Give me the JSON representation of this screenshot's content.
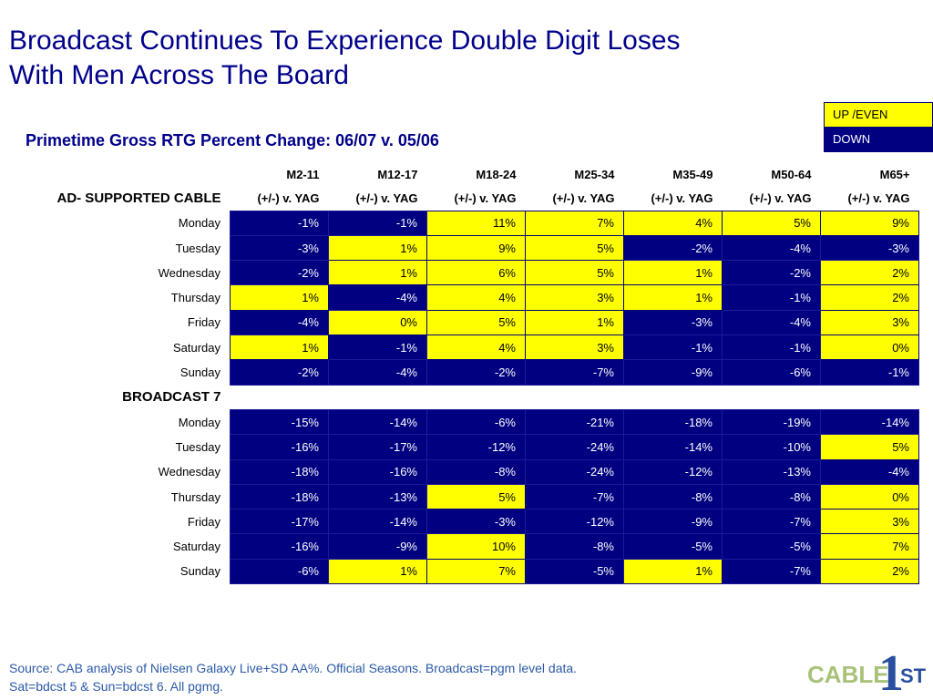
{
  "title_line1": "Broadcast Continues To Experience Double Digit Loses",
  "title_line2": "With Men Across The Board",
  "subtitle": "Primetime Gross RTG Percent Change: 06/07 v. 05/06",
  "legend": {
    "up_label": "UP /EVEN",
    "down_label": "DOWN"
  },
  "colors": {
    "up": "#ffff00",
    "down": "#000080",
    "title": "#00008b",
    "logo_green": "#a8c27a",
    "logo_blue": "#2a4fa0"
  },
  "source_line1": "Source: CAB analysis of Nielsen Galaxy Live+SD AA%. Official Seasons. Broadcast=pgm level data.",
  "source_line2": "Sat=bdcst 5 & Sun=bdcst 6.  All pgmg.",
  "logo": {
    "text": "CABLE",
    "numeral": "1",
    "suffix": "ST"
  },
  "chart_data": {
    "type": "table",
    "columns": [
      "M2-11",
      "M12-17",
      "M18-24",
      "M25-34",
      "M35-49",
      "M50-64",
      "M65+"
    ],
    "subheader": "(+/-) v. YAG",
    "sections": [
      {
        "name": "AD- SUPPORTED CABLE",
        "rows": [
          {
            "day": "Monday",
            "values": [
              "-1%",
              "-1%",
              "11%",
              "7%",
              "4%",
              "5%",
              "9%"
            ]
          },
          {
            "day": "Tuesday",
            "values": [
              "-3%",
              "1%",
              "9%",
              "5%",
              "-2%",
              "-4%",
              "-3%"
            ]
          },
          {
            "day": "Wednesday",
            "values": [
              "-2%",
              "1%",
              "6%",
              "5%",
              "1%",
              "-2%",
              "2%"
            ]
          },
          {
            "day": "Thursday",
            "values": [
              "1%",
              "-4%",
              "4%",
              "3%",
              "1%",
              "-1%",
              "2%"
            ]
          },
          {
            "day": "Friday",
            "values": [
              "-4%",
              "0%",
              "5%",
              "1%",
              "-3%",
              "-4%",
              "3%"
            ]
          },
          {
            "day": "Saturday",
            "values": [
              "1%",
              "-1%",
              "4%",
              "3%",
              "-1%",
              "-1%",
              "0%"
            ]
          },
          {
            "day": "Sunday",
            "values": [
              "-2%",
              "-4%",
              "-2%",
              "-7%",
              "-9%",
              "-6%",
              "-1%"
            ]
          }
        ]
      },
      {
        "name": "BROADCAST 7",
        "rows": [
          {
            "day": "Monday",
            "values": [
              "-15%",
              "-14%",
              "-6%",
              "-21%",
              "-18%",
              "-19%",
              "-14%"
            ]
          },
          {
            "day": "Tuesday",
            "values": [
              "-16%",
              "-17%",
              "-12%",
              "-24%",
              "-14%",
              "-10%",
              "5%"
            ]
          },
          {
            "day": "Wednesday",
            "values": [
              "-18%",
              "-16%",
              "-8%",
              "-24%",
              "-12%",
              "-13%",
              "-4%"
            ]
          },
          {
            "day": "Thursday",
            "values": [
              "-18%",
              "-13%",
              "5%",
              "-7%",
              "-8%",
              "-8%",
              "0%"
            ]
          },
          {
            "day": "Friday",
            "values": [
              "-17%",
              "-14%",
              "-3%",
              "-12%",
              "-9%",
              "-7%",
              "3%"
            ]
          },
          {
            "day": "Saturday",
            "values": [
              "-16%",
              "-9%",
              "10%",
              "-8%",
              "-5%",
              "-5%",
              "7%"
            ]
          },
          {
            "day": "Sunday",
            "values": [
              "-6%",
              "1%",
              "7%",
              "-5%",
              "1%",
              "-7%",
              "2%"
            ]
          }
        ]
      }
    ]
  }
}
